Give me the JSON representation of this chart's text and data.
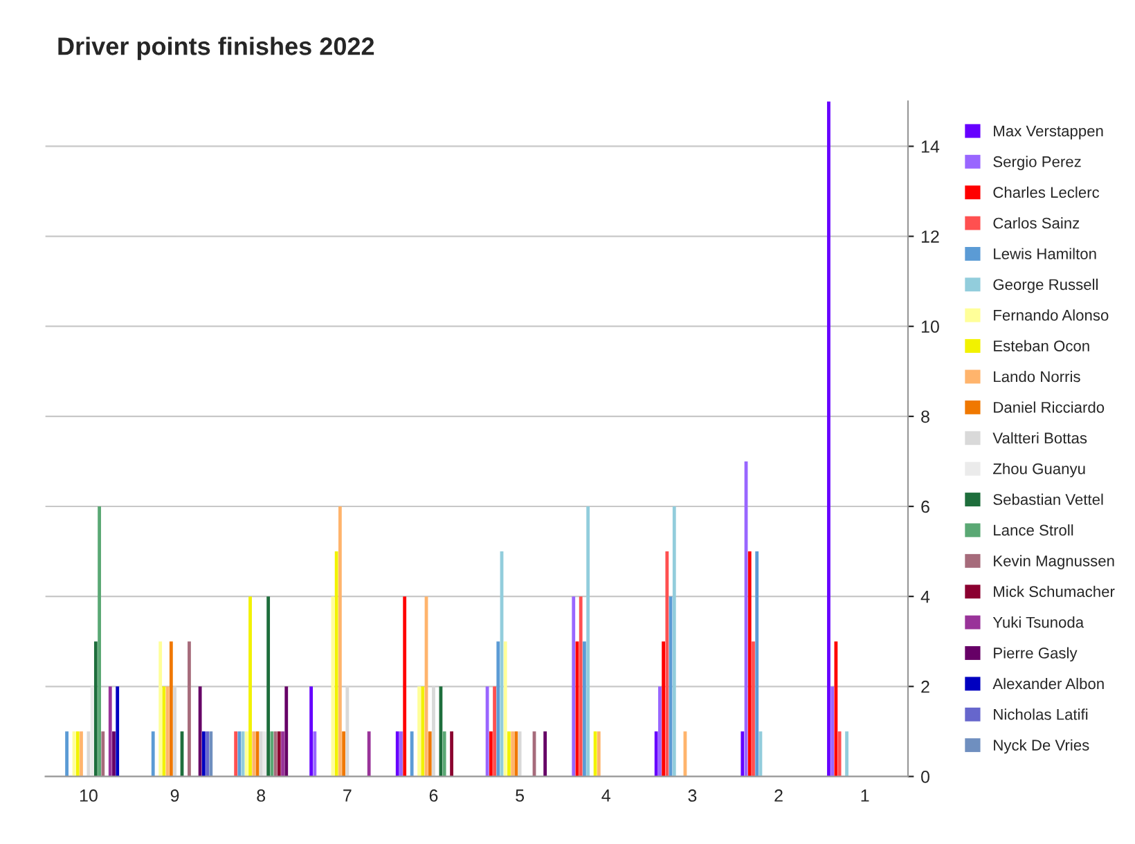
{
  "chart_data": {
    "type": "bar",
    "title": "Driver points finishes 2022",
    "categories": [
      "10",
      "9",
      "8",
      "7",
      "6",
      "5",
      "4",
      "3",
      "2",
      "1"
    ],
    "series": [
      {
        "name": "Max Verstappen",
        "color": "#6600ff",
        "values": [
          0,
          0,
          0,
          2,
          1,
          0,
          0,
          1,
          1,
          15
        ]
      },
      {
        "name": "Sergio Perez",
        "color": "#9966ff",
        "values": [
          0,
          0,
          0,
          1,
          1,
          2,
          4,
          2,
          7,
          2
        ]
      },
      {
        "name": "Charles Leclerc",
        "color": "#ff0000",
        "values": [
          0,
          0,
          0,
          0,
          4,
          1,
          3,
          3,
          5,
          3
        ]
      },
      {
        "name": "Carlos Sainz",
        "color": "#ff5050",
        "values": [
          0,
          0,
          1,
          0,
          0,
          2,
          4,
          5,
          3,
          1
        ]
      },
      {
        "name": "Lewis Hamilton",
        "color": "#5b9bd5",
        "values": [
          1,
          1,
          1,
          0,
          1,
          3,
          3,
          4,
          5,
          0
        ]
      },
      {
        "name": "George Russell",
        "color": "#92cddc",
        "values": [
          0,
          0,
          1,
          0,
          0,
          5,
          6,
          6,
          1,
          1
        ]
      },
      {
        "name": "Fernando Alonso",
        "color": "#ffff99",
        "values": [
          1,
          3,
          1,
          4,
          2,
          3,
          0,
          0,
          0,
          0
        ]
      },
      {
        "name": "Esteban Ocon",
        "color": "#f2f200",
        "values": [
          1,
          2,
          4,
          5,
          2,
          1,
          1,
          0,
          0,
          0
        ]
      },
      {
        "name": "Lando Norris",
        "color": "#ffb46c",
        "values": [
          1,
          2,
          1,
          6,
          4,
          1,
          1,
          1,
          0,
          0
        ]
      },
      {
        "name": "Daniel Ricciardo",
        "color": "#f07800",
        "values": [
          0,
          3,
          1,
          1,
          1,
          1,
          0,
          0,
          0,
          0
        ]
      },
      {
        "name": "Valtteri Bottas",
        "color": "#d9d9d9",
        "values": [
          1,
          2,
          1,
          2,
          2,
          1,
          0,
          0,
          0,
          0
        ]
      },
      {
        "name": "Zhou Guanyu",
        "color": "#ebebeb",
        "values": [
          2,
          0,
          1,
          0,
          0,
          0,
          0,
          0,
          0,
          0
        ]
      },
      {
        "name": "Sebastian Vettel",
        "color": "#1e6e3c",
        "values": [
          3,
          1,
          4,
          0,
          2,
          0,
          0,
          0,
          0,
          0
        ]
      },
      {
        "name": "Lance Stroll",
        "color": "#5aa874",
        "values": [
          6,
          0,
          1,
          0,
          1,
          0,
          0,
          0,
          0,
          0
        ]
      },
      {
        "name": "Kevin Magnussen",
        "color": "#a66b7b",
        "values": [
          1,
          3,
          1,
          0,
          0,
          1,
          0,
          0,
          0,
          0
        ]
      },
      {
        "name": "Mick Schumacher",
        "color": "#8b0030",
        "values": [
          0,
          0,
          1,
          0,
          1,
          0,
          0,
          0,
          0,
          0
        ]
      },
      {
        "name": "Yuki Tsunoda",
        "color": "#993399",
        "values": [
          2,
          0,
          1,
          1,
          0,
          0,
          0,
          0,
          0,
          0
        ]
      },
      {
        "name": "Pierre Gasly",
        "color": "#660066",
        "values": [
          1,
          2,
          2,
          0,
          0,
          1,
          0,
          0,
          0,
          0
        ]
      },
      {
        "name": "Alexander Albon",
        "color": "#0000c0",
        "values": [
          2,
          1,
          0,
          0,
          0,
          0,
          0,
          0,
          0,
          0
        ]
      },
      {
        "name": "Nicholas Latifi",
        "color": "#6666cc",
        "values": [
          0,
          1,
          0,
          0,
          0,
          0,
          0,
          0,
          0,
          0
        ]
      },
      {
        "name": "Nyck De Vries",
        "color": "#6f8fbf",
        "values": [
          0,
          1,
          0,
          0,
          0,
          0,
          0,
          0,
          0,
          0
        ]
      }
    ],
    "ylim": [
      0,
      15
    ],
    "yticks": [
      0,
      2,
      4,
      6,
      8,
      10,
      12,
      14
    ],
    "grid": "y",
    "legend": "right"
  }
}
